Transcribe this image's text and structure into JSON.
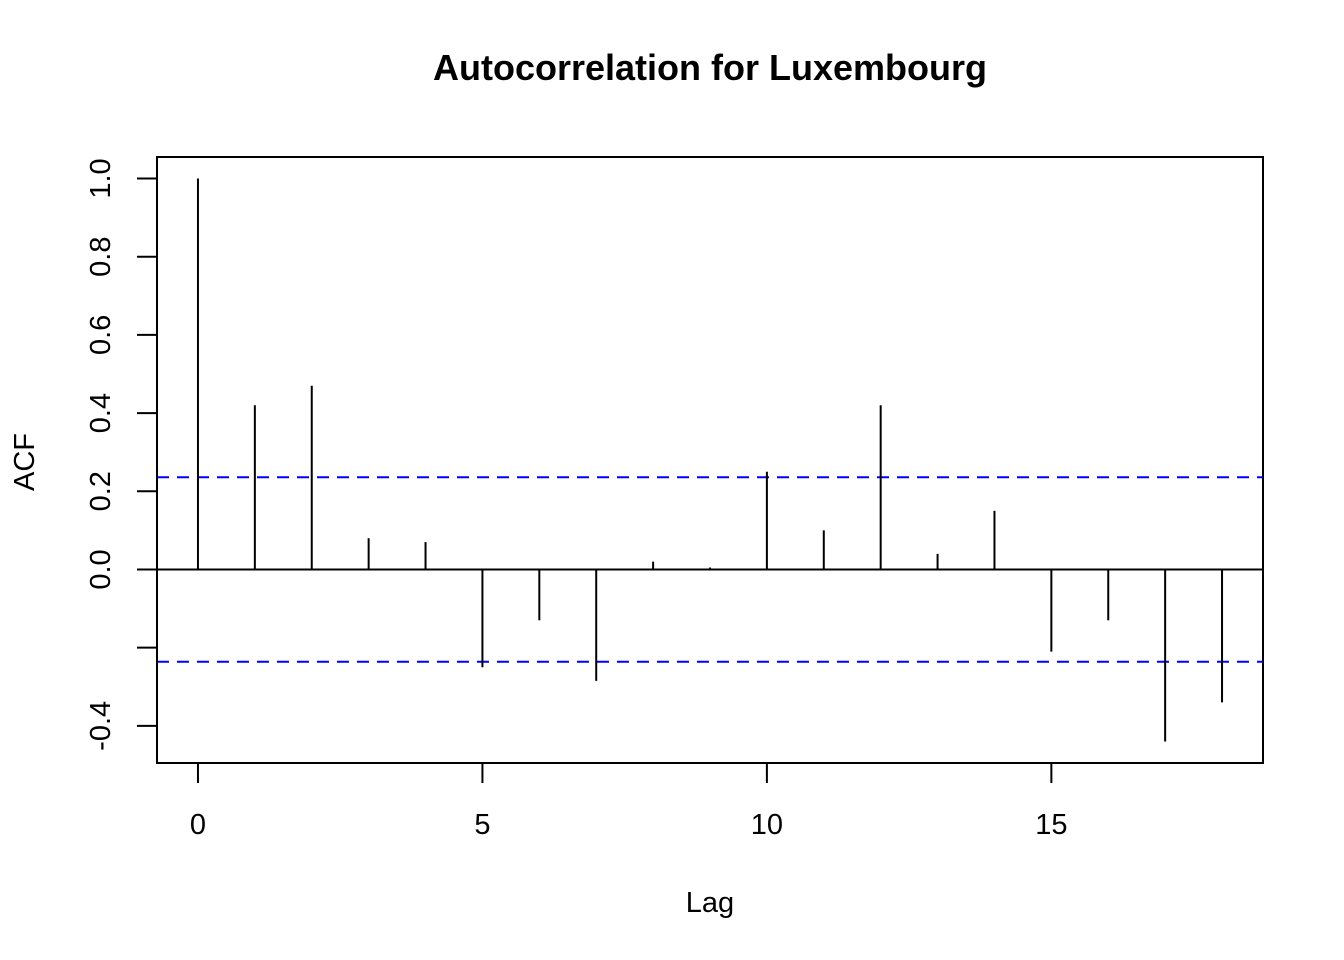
{
  "chart_data": {
    "type": "bar",
    "title": "Autocorrelation for Luxembourg",
    "xlabel": "Lag",
    "ylabel": "ACF",
    "x": [
      0,
      1,
      2,
      3,
      4,
      5,
      6,
      7,
      8,
      9,
      10,
      11,
      12,
      13,
      14,
      15,
      16,
      17,
      18
    ],
    "values": [
      1.0,
      0.42,
      0.47,
      0.08,
      0.07,
      -0.25,
      -0.13,
      -0.285,
      0.02,
      0.005,
      0.25,
      0.1,
      0.42,
      0.04,
      0.15,
      -0.21,
      -0.13,
      -0.44,
      -0.34
    ],
    "xlim": [
      -0.72,
      18.72
    ],
    "ylim": [
      -0.495,
      1.055
    ],
    "x_ticks": [
      0,
      5,
      10,
      15
    ],
    "x_tick_labels": [
      "0",
      "5",
      "10",
      "15"
    ],
    "y_ticks": [
      -0.4,
      -0.2,
      0.0,
      0.2,
      0.4,
      0.6,
      0.8,
      1.0
    ],
    "y_tick_labels": [
      "-0.4",
      "",
      "0.0",
      "0.2",
      "0.4",
      "0.6",
      "0.8",
      "1.0"
    ],
    "confidence_bounds": [
      0.236,
      -0.236
    ],
    "confidence_color": "#0000ff",
    "bar_color": "#000000",
    "grid": false,
    "legend": "none"
  }
}
